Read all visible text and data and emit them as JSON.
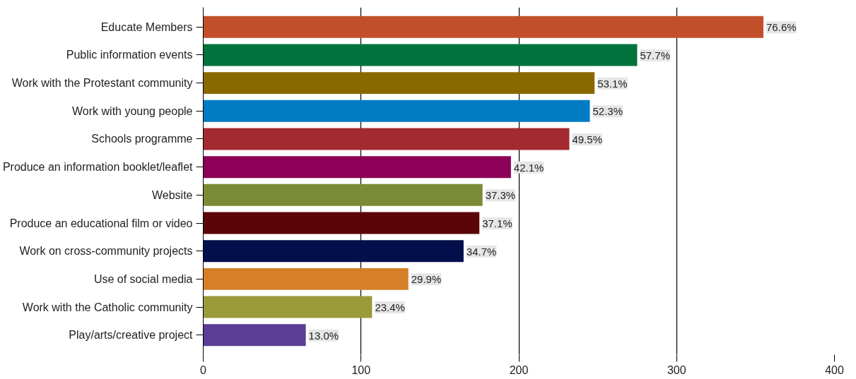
{
  "chart_data": {
    "type": "bar",
    "orientation": "horizontal",
    "categories": [
      "Educate Members",
      "Public information events",
      "Work with the Protestant community",
      "Work with young people",
      "Schools programme",
      "Produce an information booklet/leaflet",
      "Website",
      "Produce an educational film or video",
      "Work on cross-community projects",
      "Use of social media",
      "Work with the Catholic community",
      "Play/arts/creative project"
    ],
    "values": [
      355,
      275,
      248,
      245,
      232,
      195,
      177,
      175,
      165,
      130,
      107,
      65
    ],
    "colors": [
      "#c1502a",
      "#00733d",
      "#8a6800",
      "#007bc4",
      "#a32a30",
      "#8c0057",
      "#7b8b35",
      "#5c0508",
      "#020f4b",
      "#d67f28",
      "#9a9a3a",
      "#5b3d96"
    ],
    "annotations": [
      {
        "text": "76.6%",
        "x": 355,
        "y": "Educate Members"
      },
      {
        "text": "57.7%",
        "x": 275,
        "y": "Public information events"
      },
      {
        "text": "53.1%",
        "x": 248,
        "y": "Work with the Protestant community"
      },
      {
        "text": "52.3%",
        "x": 245,
        "y": "Work with young people"
      },
      {
        "text": "49.5%",
        "x": 232,
        "y": "Schools programme"
      },
      {
        "text": "42.1%",
        "x": 195,
        "y": "Produce an information booklet/leaflet"
      },
      {
        "text": "37.3%",
        "x": 177,
        "y": "Website"
      },
      {
        "text": "37.1%",
        "x": 175,
        "y": "Produce an educational film or video"
      },
      {
        "text": "34.7%",
        "x": 165,
        "y": "Work on cross-community projects"
      },
      {
        "text": "29.9%",
        "x": 130,
        "y": "Use of social media"
      },
      {
        "text": "23.4%",
        "x": 107,
        "y": "Work with the Catholic community"
      },
      {
        "text": "13.0%",
        "x": 65,
        "y": "Play/arts/creative project"
      }
    ],
    "xlim": [
      0,
      400
    ],
    "xticks": [
      0,
      100,
      200,
      300,
      400
    ],
    "grid": "x"
  }
}
